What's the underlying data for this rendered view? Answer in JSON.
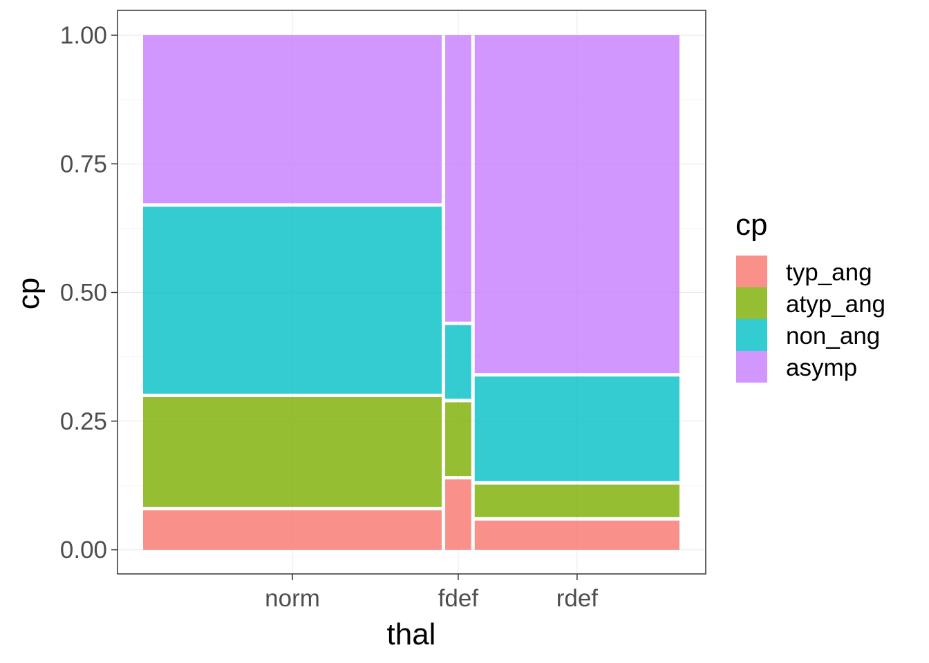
{
  "chart_data": {
    "type": "mosaic",
    "xlabel": "thal",
    "ylabel": "cp",
    "ylim": [
      0,
      1
    ],
    "y_ticks": [
      "0.00",
      "0.25",
      "0.50",
      "0.75",
      "1.00"
    ],
    "categories": [
      "norm",
      "fdef",
      "rdef"
    ],
    "category_widths": [
      0.56,
      0.055,
      0.385
    ],
    "legend": {
      "title": "cp",
      "position": "right",
      "entries": [
        {
          "label": "typ_ang",
          "color": "#F8766D"
        },
        {
          "label": "atyp_ang",
          "color": "#7CAE00"
        },
        {
          "label": "non_ang",
          "color": "#00BFC4"
        },
        {
          "label": "asymp",
          "color": "#C77CFF"
        }
      ]
    },
    "series": [
      {
        "name": "typ_ang",
        "values": [
          0.08,
          0.14,
          0.06
        ]
      },
      {
        "name": "atyp_ang",
        "values": [
          0.22,
          0.15,
          0.07
        ]
      },
      {
        "name": "non_ang",
        "values": [
          0.37,
          0.15,
          0.21
        ]
      },
      {
        "name": "asymp",
        "values": [
          0.33,
          0.56,
          0.66
        ]
      }
    ],
    "grid": true
  }
}
